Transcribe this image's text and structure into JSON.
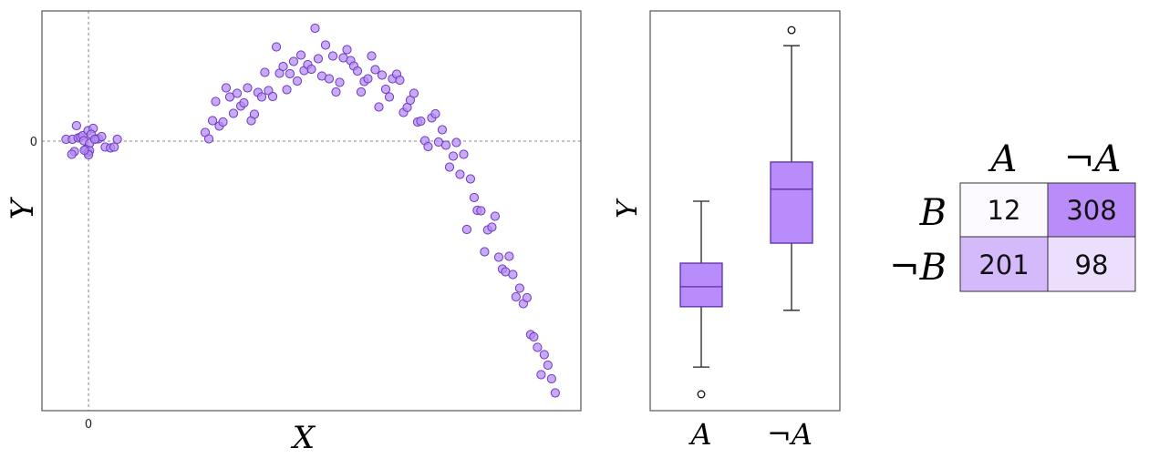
{
  "chart_data": [
    {
      "type": "scatter",
      "xlabel": "X",
      "ylabel": "Y",
      "xticks": [
        "0"
      ],
      "yticks": [
        "0"
      ],
      "xlim": [
        -0.89,
        9.41
      ],
      "ylim": [
        -5.92,
        2.86
      ],
      "reference_lines": {
        "x": 0,
        "y": 0,
        "style": "dashed"
      },
      "grid": false,
      "marker_color": "#b88cf5",
      "marker_edge_color": "#6a3cc0",
      "points": [
        [
          -0.43,
          0.04
        ],
        [
          -0.31,
          0.04
        ],
        [
          -0.23,
          0.34
        ],
        [
          -0.2,
          0.07
        ],
        [
          -0.15,
          0.09
        ],
        [
          -0.11,
          0.12
        ],
        [
          -0.09,
          0.01
        ],
        [
          -0.01,
          0.23
        ],
        [
          0.09,
          0.28
        ],
        [
          0.05,
          0.15
        ],
        [
          0.02,
          -0.05
        ],
        [
          -0.05,
          -0.18
        ],
        [
          -0.01,
          -0.25
        ],
        [
          0.02,
          -0.21
        ],
        [
          0,
          -0.3
        ],
        [
          -0.08,
          -0.2
        ],
        [
          -0.27,
          -0.23
        ],
        [
          -0.32,
          -0.29
        ],
        [
          0.15,
          0.05
        ],
        [
          0.19,
          0.05
        ],
        [
          0.25,
          0.1
        ],
        [
          0.32,
          -0.13
        ],
        [
          0.42,
          -0.15
        ],
        [
          0.49,
          -0.13
        ],
        [
          0.55,
          0.04
        ],
        [
          0.12,
          0.04
        ],
        [
          2.23,
          0.19
        ],
        [
          2.3,
          0.05
        ],
        [
          2.37,
          0.45
        ],
        [
          2.43,
          0.87
        ],
        [
          2.5,
          0.33
        ],
        [
          2.57,
          0.42
        ],
        [
          2.63,
          1.17
        ],
        [
          2.7,
          0.97
        ],
        [
          2.77,
          0.61
        ],
        [
          2.84,
          1.05
        ],
        [
          2.91,
          0.77
        ],
        [
          2.97,
          0.84
        ],
        [
          3.04,
          1.17
        ],
        [
          3.11,
          0.45
        ],
        [
          3.17,
          0.59
        ],
        [
          3.24,
          1.07
        ],
        [
          3.31,
          0.97
        ],
        [
          3.37,
          1.51
        ],
        [
          3.44,
          1.11
        ],
        [
          3.52,
          0.98
        ],
        [
          3.59,
          2.07
        ],
        [
          3.65,
          1.49
        ],
        [
          3.72,
          1.64
        ],
        [
          3.79,
          1.13
        ],
        [
          3.85,
          1.48
        ],
        [
          3.92,
          1.75
        ],
        [
          3.99,
          1.32
        ],
        [
          4.06,
          1.89
        ],
        [
          4.12,
          1.55
        ],
        [
          4.19,
          1.68
        ],
        [
          4.26,
          1.58
        ],
        [
          4.33,
          2.48
        ],
        [
          4.39,
          1.81
        ],
        [
          4.46,
          1.43
        ],
        [
          4.53,
          2.11
        ],
        [
          4.6,
          1.37
        ],
        [
          4.67,
          1.87
        ],
        [
          4.73,
          1.08
        ],
        [
          4.8,
          1.29
        ],
        [
          4.87,
          1.83
        ],
        [
          4.94,
          2.01
        ],
        [
          5.01,
          1.77
        ],
        [
          5.07,
          1.65
        ],
        [
          5.14,
          1.54
        ],
        [
          5.21,
          1.08
        ],
        [
          5.27,
          1.31
        ],
        [
          5.34,
          1.37
        ],
        [
          5.41,
          1.87
        ],
        [
          5.48,
          1.57
        ],
        [
          5.55,
          0.75
        ],
        [
          5.61,
          1.45
        ],
        [
          5.68,
          1.14
        ],
        [
          5.75,
          0.97
        ],
        [
          5.81,
          1.37
        ],
        [
          5.89,
          1.47
        ],
        [
          5.95,
          1.34
        ],
        [
          6.02,
          0.63
        ],
        [
          6.09,
          0.74
        ],
        [
          6.15,
          0.9
        ],
        [
          6.22,
          1.05
        ],
        [
          6.29,
          0.42
        ],
        [
          6.35,
          0.44
        ],
        [
          6.43,
          0.01
        ],
        [
          6.49,
          -0.12
        ],
        [
          6.56,
          0.51
        ],
        [
          6.63,
          0.6
        ],
        [
          6.69,
          -0.02
        ],
        [
          6.76,
          0.25
        ],
        [
          6.83,
          -0.09
        ],
        [
          6.9,
          -0.57
        ],
        [
          6.97,
          -0.33
        ],
        [
          7.03,
          -0.03
        ],
        [
          7.1,
          -0.73
        ],
        [
          7.17,
          -0.29
        ],
        [
          7.23,
          -1.94
        ],
        [
          7.3,
          -0.83
        ],
        [
          7.37,
          -1.24
        ],
        [
          7.43,
          -1.52
        ],
        [
          7.5,
          -1.53
        ],
        [
          7.57,
          -2.43
        ],
        [
          7.63,
          -1.95
        ],
        [
          7.71,
          -1.89
        ],
        [
          7.77,
          -1.65
        ],
        [
          7.84,
          -2.55
        ],
        [
          7.91,
          -2.81
        ],
        [
          7.97,
          -2.87
        ],
        [
          8.04,
          -2.53
        ],
        [
          8.11,
          -2.93
        ],
        [
          8.17,
          -3.42
        ],
        [
          8.24,
          -3.23
        ],
        [
          8.31,
          -3.57
        ],
        [
          8.38,
          -3.44
        ],
        [
          8.45,
          -4.25
        ],
        [
          8.51,
          -4.3
        ],
        [
          8.58,
          -4.53
        ],
        [
          8.65,
          -5.13
        ],
        [
          8.71,
          -4.69
        ],
        [
          8.78,
          -4.92
        ],
        [
          8.85,
          -5.22
        ],
        [
          8.92,
          -5.53
        ]
      ]
    },
    {
      "type": "box",
      "ylabel": "Y",
      "categories": [
        "A",
        "¬A"
      ],
      "ylim": [
        0,
        10
      ],
      "box_color": "#b88cfa",
      "box_edge_color": "#5b2ea6",
      "boxes": [
        {
          "whislo": 1.09,
          "q1": 2.6,
          "med": 3.1,
          "q3": 3.69,
          "whishi": 5.24,
          "fliers": [
            0.41
          ]
        },
        {
          "whislo": 2.51,
          "q1": 4.19,
          "med": 5.54,
          "q3": 6.22,
          "whishi": 9.13,
          "fliers": [
            9.52
          ]
        }
      ]
    },
    {
      "type": "table",
      "col_headers": [
        "A",
        "¬A"
      ],
      "row_headers": [
        "B",
        "¬B"
      ],
      "cells": [
        [
          "12",
          "308"
        ],
        [
          "201",
          "98"
        ]
      ],
      "cell_colors": [
        [
          "#fcfaff",
          "#ba8cfa"
        ],
        [
          "#d4b9fb",
          "#ecdefd"
        ]
      ]
    }
  ]
}
